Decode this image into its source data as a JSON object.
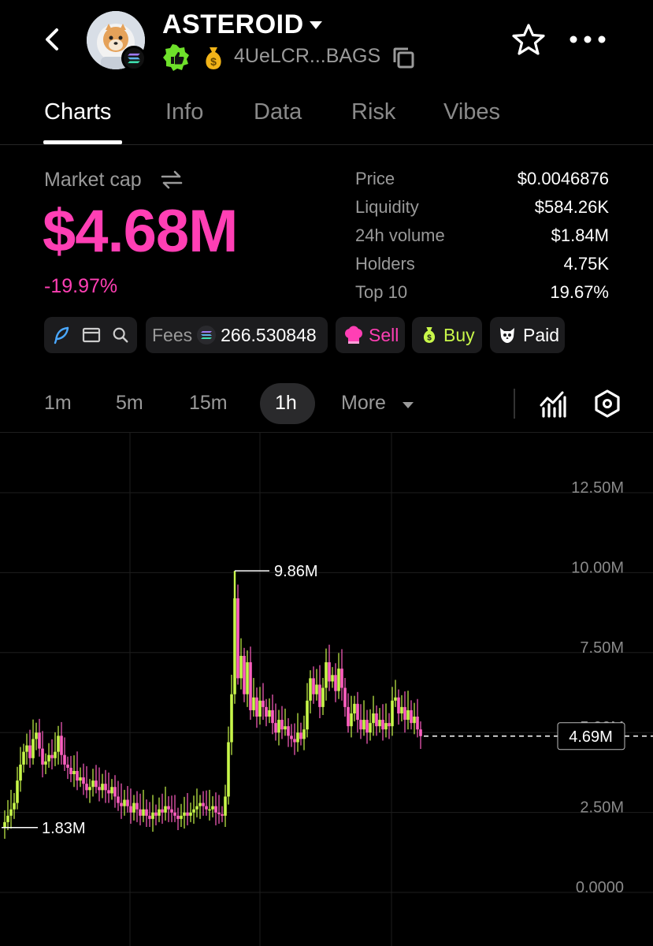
{
  "header": {
    "token_name": "ASTEROID",
    "address": "4UeLCR...BAGS"
  },
  "tabs": [
    {
      "label": "Charts",
      "active": true
    },
    {
      "label": "Info",
      "active": false
    },
    {
      "label": "Data",
      "active": false
    },
    {
      "label": "Risk",
      "active": false
    },
    {
      "label": "Vibes",
      "active": false
    }
  ],
  "market": {
    "label": "Market cap",
    "value": "$4.68M",
    "change": "-19.97%"
  },
  "stats": [
    {
      "label": "Price",
      "value": "$0.0046876"
    },
    {
      "label": "Liquidity",
      "value": "$584.26K"
    },
    {
      "label": "24h volume",
      "value": "$1.84M"
    },
    {
      "label": "Holders",
      "value": "4.75K"
    },
    {
      "label": "Top 10",
      "value": "19.67%"
    }
  ],
  "pills": {
    "fees_label": "Fees",
    "fees_value": "266.530848",
    "sell": "Sell",
    "buy": "Buy",
    "paid": "Paid"
  },
  "timeframes": [
    {
      "label": "1m",
      "active": false
    },
    {
      "label": "5m",
      "active": false
    },
    {
      "label": "15m",
      "active": false
    },
    {
      "label": "1h",
      "active": true
    },
    {
      "label": "More",
      "active": false
    }
  ],
  "colors": {
    "accent_pink": "#ff3fb4",
    "accent_green": "#c8f74a",
    "up_candle": "#c8f74a",
    "down_candle": "#ff5fc1"
  },
  "chart_data": {
    "type": "candlestick",
    "y_ticks": [
      "12.50M",
      "10.00M",
      "7.50M",
      "5.00M",
      "2.50M",
      "0.0000"
    ],
    "ylim": [
      0,
      12.5
    ],
    "high_label": "9.86M",
    "low_label": "1.83M",
    "current_label": "4.69M",
    "high_value": 9.86,
    "low_value": 1.83,
    "current_value": 4.69,
    "grid": true
  }
}
